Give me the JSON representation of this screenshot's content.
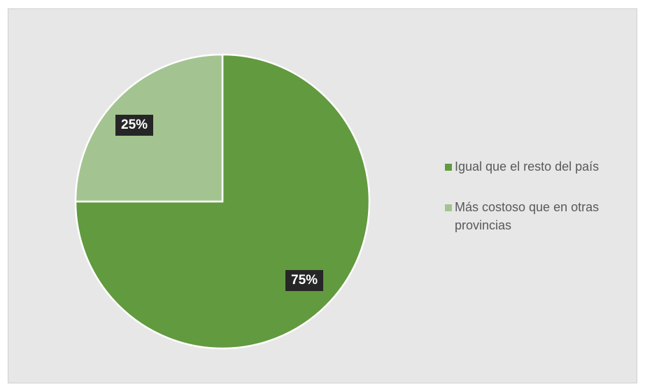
{
  "chart_data": {
    "type": "pie",
    "categories": [
      "Igual que el resto del país",
      "Más costoso que en otras provincias"
    ],
    "values": [
      75,
      25
    ],
    "data_labels": [
      "75%",
      "25%"
    ],
    "colors": [
      "#629a3f",
      "#a3c490"
    ],
    "legend_placement": "right",
    "title": ""
  }
}
